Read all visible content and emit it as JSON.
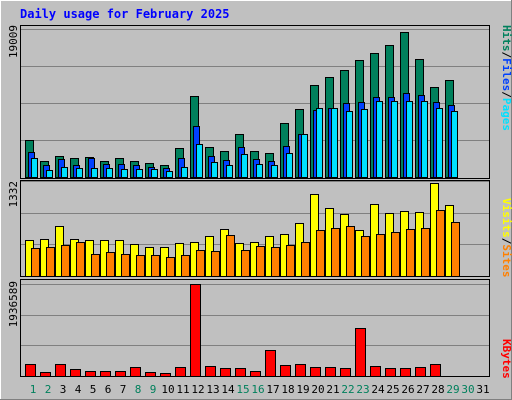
{
  "title": "Daily usage for February 2025",
  "colors": {
    "hits": "#00805c",
    "files": "#0040ff",
    "pages": "#00e0ff",
    "visits": "#ffff00",
    "sites": "#ff8000",
    "kbytes": "#ff0000",
    "weekday_label": "#000000",
    "weekend_label": "#00805c",
    "panel_bg": "#c0c0c0"
  },
  "chart_data": [
    {
      "type": "bar",
      "title": "Daily usage for February 2025",
      "panel": "requests",
      "categories": [
        "1",
        "2",
        "3",
        "4",
        "5",
        "6",
        "7",
        "8",
        "9",
        "10",
        "11",
        "12",
        "13",
        "14",
        "15",
        "16",
        "17",
        "18",
        "19",
        "20",
        "21",
        "22",
        "23",
        "24",
        "25",
        "26",
        "27",
        "28",
        "29",
        "30",
        "31"
      ],
      "ymax_label": "19009",
      "ylim": [
        0,
        19009
      ],
      "grid": true,
      "right_axis_labels": [
        {
          "text": "Hits",
          "color": "#00805c"
        },
        {
          "text": "/",
          "color": "#000000"
        },
        {
          "text": "Files",
          "color": "#0040ff"
        },
        {
          "text": "/",
          "color": "#000000"
        },
        {
          "text": "Pages",
          "color": "#00e0ff"
        }
      ],
      "series": [
        {
          "name": "Hits",
          "color": "#00805c",
          "values": [
            4800,
            2000,
            2700,
            2500,
            2600,
            2100,
            2500,
            2100,
            1800,
            1600,
            3700,
            10400,
            3900,
            3300,
            5500,
            3400,
            3100,
            6900,
            8700,
            11800,
            12800,
            13800,
            15000,
            15900,
            16900,
            18600,
            15100,
            11600,
            12500,
            0,
            0
          ]
        },
        {
          "name": "Files",
          "color": "#0040ff",
          "values": [
            3200,
            1600,
            2300,
            1600,
            2400,
            1700,
            1700,
            1600,
            1300,
            1200,
            2500,
            6500,
            2700,
            2200,
            3800,
            2300,
            2100,
            4000,
            5500,
            8600,
            8900,
            9500,
            9600,
            10300,
            10300,
            10800,
            10500,
            9600,
            9300,
            0,
            0
          ]
        },
        {
          "name": "Pages",
          "color": "#00e0ff",
          "values": [
            2400,
            900,
            1300,
            1100,
            1100,
            1100,
            1000,
            1000,
            1000,
            800,
            1300,
            4200,
            1900,
            1600,
            2900,
            1700,
            1600,
            3100,
            5500,
            8800,
            8900,
            8500,
            8700,
            9700,
            9700,
            9800,
            9800,
            8900,
            8500,
            0,
            0
          ]
        }
      ]
    },
    {
      "type": "bar",
      "panel": "visits",
      "ymax_label": "1332",
      "ylim": [
        0,
        1332
      ],
      "grid": true,
      "right_axis_labels": [
        {
          "text": "Visits",
          "color": "#ffff00"
        },
        {
          "text": "/",
          "color": "#000000"
        },
        {
          "text": "Sites",
          "color": "#ff8000"
        }
      ],
      "series": [
        {
          "name": "Visits",
          "color": "#ffff00",
          "values": [
            500,
            520,
            700,
            520,
            500,
            500,
            500,
            450,
            400,
            410,
            460,
            470,
            560,
            660,
            460,
            480,
            560,
            590,
            740,
            1150,
            960,
            870,
            650,
            1010,
            890,
            910,
            900,
            1300,
            1000,
            0,
            0
          ]
        },
        {
          "name": "Sites",
          "color": "#ff8000",
          "values": [
            390,
            410,
            430,
            470,
            310,
            340,
            310,
            300,
            290,
            270,
            300,
            360,
            350,
            580,
            370,
            420,
            410,
            430,
            480,
            640,
            680,
            700,
            560,
            590,
            620,
            660,
            680,
            920,
            760,
            0,
            0
          ]
        }
      ]
    },
    {
      "type": "bar",
      "panel": "kbytes",
      "ymax_label": "1936589",
      "ylim": [
        0,
        1936589
      ],
      "grid": true,
      "right_axis_labels": [
        {
          "text": "KBytes",
          "color": "#ff0000"
        }
      ],
      "series": [
        {
          "name": "KBytes",
          "color": "#ff0000",
          "values": [
            250000,
            80000,
            250000,
            140000,
            110000,
            110000,
            110000,
            190000,
            90000,
            70000,
            190000,
            1936589,
            200000,
            170000,
            170000,
            110000,
            550000,
            230000,
            260000,
            190000,
            180000,
            170000,
            1000000,
            200000,
            170000,
            170000,
            180000,
            260000,
            0,
            0,
            0
          ]
        }
      ]
    }
  ],
  "x_axis": {
    "labels": [
      "1",
      "2",
      "3",
      "4",
      "5",
      "6",
      "7",
      "8",
      "9",
      "10",
      "11",
      "12",
      "13",
      "14",
      "15",
      "16",
      "17",
      "18",
      "19",
      "20",
      "21",
      "22",
      "23",
      "24",
      "25",
      "26",
      "27",
      "28",
      "29",
      "30",
      "31"
    ],
    "weekend_days": [
      "1",
      "2",
      "8",
      "9",
      "15",
      "16",
      "22",
      "23"
    ],
    "future_days": [
      "29",
      "30"
    ]
  }
}
